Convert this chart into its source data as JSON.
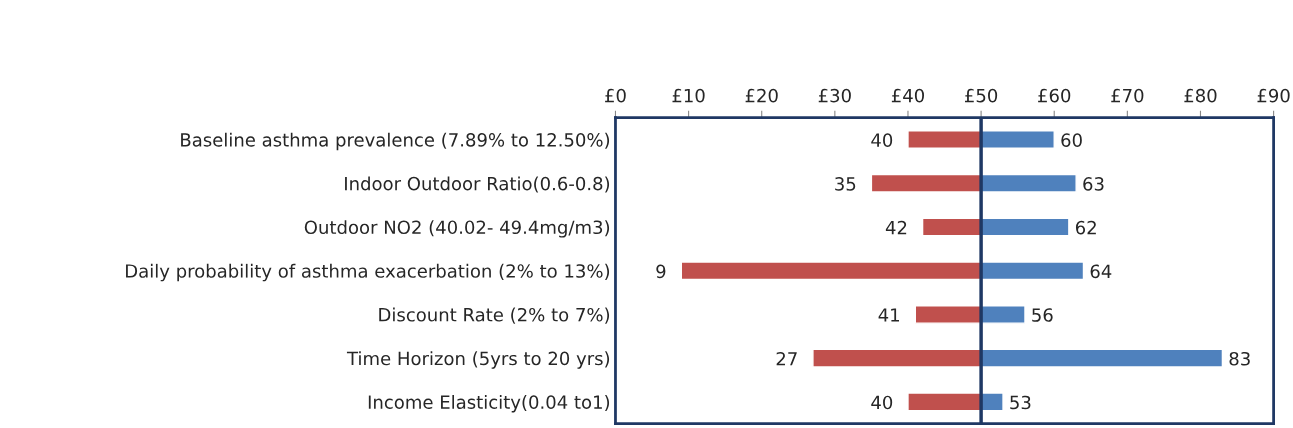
{
  "chart_data": {
    "type": "bar",
    "orientation": "horizontal",
    "categories": [
      "Baseline asthma prevalence (7.89% to 12.50%)",
      "Indoor Outdoor Ratio(0.6-0.8)",
      "Outdoor NO2 (40.02- 49.4mg/m3)",
      "Daily probability of asthma exacerbation (2% to 13%)",
      "Discount Rate (2% to 7%)",
      "Time Horizon (5yrs to 20 yrs)",
      "Income Elasticity(0.04 to1)"
    ],
    "series": [
      {
        "color": "#c0504d",
        "base": [
          50,
          50,
          50,
          50,
          50,
          50,
          50
        ],
        "values": [
          -10,
          -15,
          -8,
          -41,
          -9,
          -23,
          -10
        ],
        "value_labels": [
          "40",
          "35",
          "42",
          "9",
          "41",
          "27",
          "40"
        ]
      },
      {
        "color": "#4f81bd",
        "base": [
          50,
          50,
          50,
          50,
          50,
          50,
          50
        ],
        "values": [
          10,
          13,
          12,
          14,
          6,
          33,
          3
        ],
        "value_labels": [
          "60",
          "63",
          "62",
          "64",
          "56",
          "83",
          "53"
        ]
      }
    ],
    "xlim": [
      0,
      90
    ],
    "xticks": [
      {
        "value": 0,
        "label": "£0"
      },
      {
        "value": 10,
        "label": "£10"
      },
      {
        "value": 20,
        "label": "£20"
      },
      {
        "value": 30,
        "label": "£30"
      },
      {
        "value": 40,
        "label": "£40"
      },
      {
        "value": 50,
        "label": "£50"
      },
      {
        "value": 60,
        "label": "£60"
      },
      {
        "value": 70,
        "label": "£70"
      },
      {
        "value": 80,
        "label": "£80"
      },
      {
        "value": 90,
        "label": "£90"
      }
    ],
    "ref_lines": [
      {
        "axis": "x",
        "value": 50,
        "color": "#1f3864"
      }
    ],
    "grid": false
  }
}
